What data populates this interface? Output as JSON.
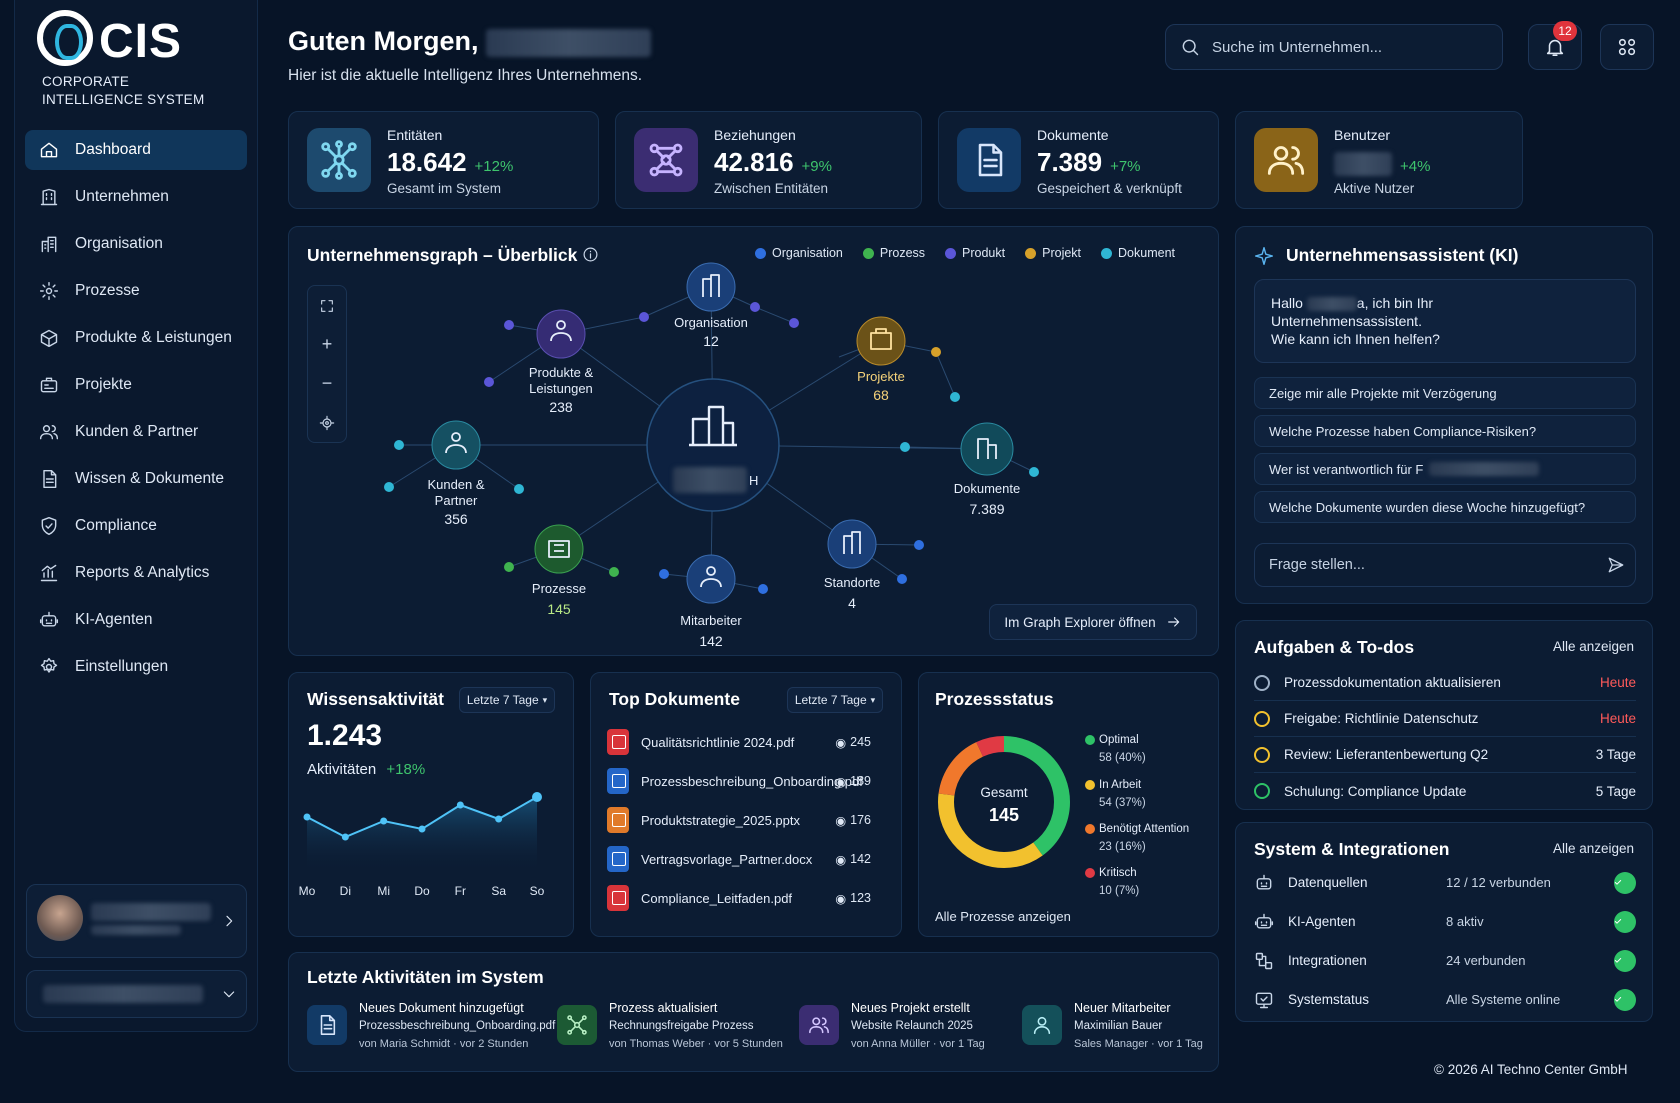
{
  "brand": {
    "name": "CIS",
    "subtitle": "CORPORATE\nINTELLIGENCE SYSTEM"
  },
  "sidebar": {
    "items": [
      {
        "label": "Dashboard",
        "icon": "home-icon",
        "active": true
      },
      {
        "label": "Unternehmen",
        "icon": "building-icon"
      },
      {
        "label": "Organisation",
        "icon": "org-icon"
      },
      {
        "label": "Prozesse",
        "icon": "gear-icon"
      },
      {
        "label": "Produkte & Leistungen",
        "icon": "box-icon"
      },
      {
        "label": "Projekte",
        "icon": "project-icon"
      },
      {
        "label": "Kunden & Partner",
        "icon": "users-icon"
      },
      {
        "label": "Wissen & Dokumente",
        "icon": "document-icon"
      },
      {
        "label": "Compliance",
        "icon": "shield-icon"
      },
      {
        "label": "Reports & Analytics",
        "icon": "chart-icon"
      },
      {
        "label": "KI-Agenten",
        "icon": "robot-icon"
      },
      {
        "label": "Einstellungen",
        "icon": "settings-icon"
      }
    ]
  },
  "header": {
    "greeting": "Guten Morgen,",
    "subtitle": "Hier ist die aktuelle Intelligenz Ihres Unternehmens.",
    "search_placeholder": "Suche im Unternehmen...",
    "notifications": "12"
  },
  "stats": [
    {
      "label": "Entitäten",
      "value": "18.642",
      "change": "+12%",
      "desc": "Gesamt im System",
      "color": "#1d4a6e",
      "icon": "network-icon"
    },
    {
      "label": "Beziehungen",
      "value": "42.816",
      "change": "+9%",
      "desc": "Zwischen Entitäten",
      "color": "#3b2d72",
      "icon": "relations-icon"
    },
    {
      "label": "Dokumente",
      "value": "7.389",
      "change": "+7%",
      "desc": "Gespeichert & verknüpft",
      "color": "#123a66",
      "icon": "document-icon"
    },
    {
      "label": "Benutzer",
      "value": "",
      "change": "+4%",
      "desc": "Aktive Nutzer",
      "color": "#8a6418",
      "icon": "users-icon"
    }
  ],
  "graph": {
    "title": "Unternehmensgraph – Überblick",
    "legend": [
      {
        "name": "Organisation",
        "color": "#2f6fe0"
      },
      {
        "name": "Prozess",
        "color": "#3fb34f"
      },
      {
        "name": "Produkt",
        "color": "#5b56d8"
      },
      {
        "name": "Projekt",
        "color": "#d7a12a"
      },
      {
        "name": "Dokument",
        "color": "#2fb6d4"
      }
    ],
    "nodes": [
      {
        "label": "Organisation",
        "count": "12"
      },
      {
        "label": "Produkte &\nLeistungen",
        "count": "238"
      },
      {
        "label": "Projekte",
        "count": "68"
      },
      {
        "label": "Kunden &\nPartner",
        "count": "356"
      },
      {
        "label": "Dokumente",
        "count": "7.389"
      },
      {
        "label": "Prozesse",
        "count": "145"
      },
      {
        "label": "Mitarbeiter",
        "count": "142"
      },
      {
        "label": "Standorte",
        "count": "4"
      }
    ],
    "center_suffix": "H",
    "explorer_button": "Im Graph Explorer öffnen"
  },
  "knowledge": {
    "title": "Wissensaktivität",
    "range": "Letzte 7 Tage",
    "value": "1.243",
    "label": "Aktivitäten",
    "change": "+18%"
  },
  "chart_data": {
    "type": "area",
    "categories": [
      "Mo",
      "Di",
      "Mi",
      "Do",
      "Fr",
      "Sa",
      "So"
    ],
    "values": [
      28,
      18,
      26,
      22,
      34,
      27,
      38
    ],
    "ylim": [
      0,
      50
    ],
    "title": "",
    "xlabel": "",
    "ylabel": ""
  },
  "top_docs": {
    "title": "Top Dokumente",
    "range": "Letzte 7 Tage",
    "items": [
      {
        "name": "Qualitätsrichtlinie 2024.pdf",
        "views": "245",
        "color": "#d8343a"
      },
      {
        "name": "Prozessbeschreibung_Onboarding.pdf",
        "views": "189",
        "color": "#2466c8"
      },
      {
        "name": "Produktstrategie_2025.pptx",
        "views": "176",
        "color": "#e07a2a"
      },
      {
        "name": "Vertragsvorlage_Partner.docx",
        "views": "142",
        "color": "#2466c8"
      },
      {
        "name": "Compliance_Leitfaden.pdf",
        "views": "123",
        "color": "#d8343a"
      }
    ]
  },
  "process": {
    "title": "Prozessstatus",
    "center_label": "Gesamt",
    "center_value": "145",
    "link": "Alle Prozesse anzeigen",
    "items": [
      {
        "name": "Optimal",
        "detail": "58 (40%)",
        "pct": 40,
        "color": "#2ec267"
      },
      {
        "name": "In Arbeit",
        "detail": "54 (37%)",
        "pct": 37,
        "color": "#f2c12e"
      },
      {
        "name": "Benötigt Attention",
        "detail": "23 (16%)",
        "pct": 16,
        "color": "#f0782c"
      },
      {
        "name": "Kritisch",
        "detail": "10 (7%)",
        "pct": 7,
        "color": "#e03a44"
      }
    ]
  },
  "activities": {
    "title": "Letzte Aktivitäten im System",
    "items": [
      {
        "t1": "Neues Dokument hinzugefügt",
        "t2": "Prozessbeschreibung_Onboarding.pdf",
        "t3": "von Maria Schmidt · vor 2 Stunden",
        "color": "#123a66",
        "icon": "document-icon"
      },
      {
        "t1": "Prozess aktualisiert",
        "t2": "Rechnungsfreigabe Prozess",
        "t3": "von Thomas Weber · vor 5 Stunden",
        "color": "#1c5a34",
        "icon": "network-icon"
      },
      {
        "t1": "Neues Projekt erstellt",
        "t2": "Website Relaunch 2025",
        "t3": "von Anna Müller · vor 1 Tag",
        "color": "#3b2d72",
        "icon": "users-icon"
      },
      {
        "t1": "Neuer Mitarbeiter",
        "t2": "Maximilian Bauer",
        "t3": "Sales Manager · vor 1 Tag",
        "color": "#14505a",
        "icon": "user-icon"
      }
    ]
  },
  "assistant": {
    "title": "Unternehmensassistent (KI)",
    "greeting_start": "Hallo",
    "greeting_end": "a, ich bin Ihr",
    "greeting_line2": "Unternehmensassistent.",
    "greeting_line3": "Wie kann ich Ihnen helfen?",
    "suggestions": [
      "Zeige mir alle Projekte mit Verzögerung",
      "Welche Prozesse haben Compliance-Risiken?",
      "Wer ist verantwortlich für F",
      "Welche Dokumente wurden diese Woche hinzugefügt?"
    ],
    "input_placeholder": "Frage stellen..."
  },
  "tasks": {
    "title": "Aufgaben & To-dos",
    "link": "Alle anzeigen",
    "items": [
      {
        "name": "Prozessdokumentation aktualisieren",
        "due": "Heute",
        "due_color": "#ff5a5a",
        "check_color": "#9fb1c7"
      },
      {
        "name": "Freigabe: Richtlinie Datenschutz",
        "due": "Heute",
        "due_color": "#ff5a5a",
        "check_color": "#f2c12e"
      },
      {
        "name": "Review: Lieferantenbewertung Q2",
        "due": "3 Tage",
        "due_color": "#e6eefb",
        "check_color": "#f2c12e"
      },
      {
        "name": "Schulung: Compliance Update",
        "due": "5 Tage",
        "due_color": "#e6eefb",
        "check_color": "#2ec267"
      }
    ]
  },
  "system": {
    "title": "System & Integrationen",
    "link": "Alle anzeigen",
    "items": [
      {
        "name": "Datenquellen",
        "status": "12 / 12 verbunden",
        "icon": "robot-icon"
      },
      {
        "name": "KI-Agenten",
        "status": "8 aktiv",
        "icon": "robot-icon"
      },
      {
        "name": "Integrationen",
        "status": "24 verbunden",
        "icon": "plug-icon"
      },
      {
        "name": "Systemstatus",
        "status": "Alle Systeme online",
        "icon": "monitor-icon"
      }
    ]
  },
  "footer": "© 2026 AI Techno Center GmbH"
}
